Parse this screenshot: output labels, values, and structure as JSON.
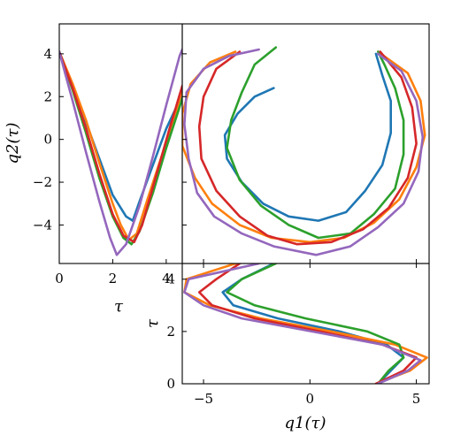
{
  "chart_data": [
    {
      "panel": "left",
      "type": "line",
      "xlabel": "τ",
      "ylabel": "q2(τ)",
      "xlim": [
        0,
        4.6
      ],
      "ylim": [
        -5.8,
        5.4
      ],
      "xticks": [
        "0",
        "2",
        "4"
      ],
      "xtick_values": [
        0,
        2,
        4
      ],
      "yticks": [
        "4",
        "2",
        "0",
        "−2",
        "−4"
      ],
      "ytick_values": [
        4,
        2,
        0,
        -2,
        -4
      ],
      "series": [
        {
          "color": "#1f77b4",
          "points": [
            [
              0,
              4.1
            ],
            [
              0.5,
              2.5
            ],
            [
              1.0,
              0.8
            ],
            [
              1.5,
              -0.9
            ],
            [
              2.0,
              -2.6
            ],
            [
              2.5,
              -3.6
            ],
            [
              2.75,
              -3.8
            ],
            [
              3.0,
              -2.9
            ],
            [
              3.5,
              -1.2
            ],
            [
              4.0,
              0.5
            ],
            [
              4.6,
              2.1
            ]
          ]
        },
        {
          "color": "#ff7f0e",
          "points": [
            [
              0,
              4.1
            ],
            [
              0.5,
              2.6
            ],
            [
              1.0,
              0.9
            ],
            [
              1.5,
              -1.1
            ],
            [
              2.0,
              -3.0
            ],
            [
              2.3,
              -4.0
            ],
            [
              2.6,
              -4.7
            ],
            [
              2.9,
              -4.4
            ],
            [
              3.3,
              -2.8
            ],
            [
              3.8,
              -0.9
            ],
            [
              4.3,
              1.0
            ],
            [
              4.6,
              2.3
            ]
          ]
        },
        {
          "color": "#2ca02c",
          "points": [
            [
              0,
              4.1
            ],
            [
              0.5,
              2.3
            ],
            [
              1.0,
              0.3
            ],
            [
              1.5,
              -1.8
            ],
            [
              2.0,
              -3.6
            ],
            [
              2.4,
              -4.6
            ],
            [
              2.7,
              -4.9
            ],
            [
              3.0,
              -4.3
            ],
            [
              3.5,
              -2.5
            ],
            [
              4.0,
              -0.4
            ],
            [
              4.6,
              1.9
            ]
          ]
        },
        {
          "color": "#d62728",
          "points": [
            [
              0,
              4.1
            ],
            [
              0.5,
              2.4
            ],
            [
              1.0,
              0.5
            ],
            [
              1.5,
              -1.6
            ],
            [
              2.0,
              -3.5
            ],
            [
              2.4,
              -4.5
            ],
            [
              2.8,
              -4.8
            ],
            [
              3.1,
              -4.0
            ],
            [
              3.6,
              -1.8
            ],
            [
              4.1,
              0.4
            ],
            [
              4.6,
              2.5
            ]
          ]
        },
        {
          "color": "#9467bd",
          "points": [
            [
              0,
              4.1
            ],
            [
              0.5,
              1.8
            ],
            [
              1.0,
              -0.6
            ],
            [
              1.5,
              -2.9
            ],
            [
              1.9,
              -4.6
            ],
            [
              2.15,
              -5.4
            ],
            [
              2.5,
              -4.9
            ],
            [
              3.0,
              -3.1
            ],
            [
              3.5,
              -0.8
            ],
            [
              4.0,
              1.6
            ],
            [
              4.5,
              3.9
            ],
            [
              4.6,
              4.2
            ]
          ]
        }
      ]
    },
    {
      "panel": "main",
      "type": "line",
      "xlim": [
        -6,
        5.6
      ],
      "ylim": [
        -5.8,
        5.4
      ],
      "series": [
        {
          "color": "#1f77b4",
          "points": [
            [
              -1.7,
              2.4
            ],
            [
              -2.6,
              2.0
            ],
            [
              -3.4,
              1.2
            ],
            [
              -4.0,
              0.2
            ],
            [
              -3.9,
              -0.9
            ],
            [
              -3.2,
              -2.0
            ],
            [
              -2.2,
              -3.0
            ],
            [
              -1.0,
              -3.6
            ],
            [
              0.4,
              -3.8
            ],
            [
              1.7,
              -3.4
            ],
            [
              2.6,
              -2.4
            ],
            [
              3.4,
              -1.2
            ],
            [
              3.8,
              0.3
            ],
            [
              3.8,
              1.8
            ],
            [
              3.4,
              3.0
            ],
            [
              3.1,
              4.0
            ]
          ]
        },
        {
          "color": "#ff7f0e",
          "points": [
            [
              -3.5,
              4.1
            ],
            [
              -4.7,
              3.6
            ],
            [
              -5.6,
              2.6
            ],
            [
              -6.0,
              1.2
            ],
            [
              -6.0,
              -0.3
            ],
            [
              -5.4,
              -1.8
            ],
            [
              -4.6,
              -3.0
            ],
            [
              -3.3,
              -4.0
            ],
            [
              -1.8,
              -4.6
            ],
            [
              0,
              -4.8
            ],
            [
              1.6,
              -4.6
            ],
            [
              3.0,
              -3.9
            ],
            [
              4.2,
              -2.8
            ],
            [
              5.0,
              -1.3
            ],
            [
              5.4,
              0.2
            ],
            [
              5.2,
              1.8
            ],
            [
              4.6,
              3.1
            ],
            [
              3.2,
              4.1
            ]
          ]
        },
        {
          "color": "#2ca02c",
          "points": [
            [
              -1.6,
              4.3
            ],
            [
              -2.6,
              3.5
            ],
            [
              -3.2,
              2.2
            ],
            [
              -3.7,
              0.9
            ],
            [
              -3.9,
              -0.4
            ],
            [
              -3.3,
              -1.9
            ],
            [
              -2.3,
              -3.1
            ],
            [
              -1.0,
              -4.0
            ],
            [
              0.4,
              -4.6
            ],
            [
              1.9,
              -4.4
            ],
            [
              3.0,
              -3.5
            ],
            [
              4.0,
              -2.3
            ],
            [
              4.4,
              -0.7
            ],
            [
              4.4,
              0.9
            ],
            [
              4.0,
              2.4
            ],
            [
              3.5,
              3.5
            ],
            [
              3.2,
              4.1
            ]
          ]
        },
        {
          "color": "#d62728",
          "points": [
            [
              -3.3,
              4.1
            ],
            [
              -4.4,
              3.3
            ],
            [
              -5.0,
              2.0
            ],
            [
              -5.2,
              0.6
            ],
            [
              -5.1,
              -0.9
            ],
            [
              -4.4,
              -2.4
            ],
            [
              -3.3,
              -3.6
            ],
            [
              -2.0,
              -4.5
            ],
            [
              -0.6,
              -4.9
            ],
            [
              1.0,
              -4.8
            ],
            [
              2.5,
              -4.2
            ],
            [
              3.7,
              -3.2
            ],
            [
              4.6,
              -1.8
            ],
            [
              5.0,
              -0.2
            ],
            [
              4.8,
              1.5
            ],
            [
              4.3,
              2.9
            ],
            [
              3.3,
              4.1
            ]
          ]
        },
        {
          "color": "#9467bd",
          "points": [
            [
              -2.4,
              4.2
            ],
            [
              -3.8,
              3.9
            ],
            [
              -5.0,
              3.3
            ],
            [
              -5.8,
              2.2
            ],
            [
              -5.9,
              0.7
            ],
            [
              -5.7,
              -0.9
            ],
            [
              -5.3,
              -2.5
            ],
            [
              -4.5,
              -3.6
            ],
            [
              -3.2,
              -4.4
            ],
            [
              -1.7,
              -5.0
            ],
            [
              0.3,
              -5.4
            ],
            [
              1.9,
              -5.0
            ],
            [
              3.2,
              -4.1
            ],
            [
              4.4,
              -3.0
            ],
            [
              5.1,
              -1.5
            ],
            [
              5.3,
              0.1
            ],
            [
              5.0,
              1.8
            ],
            [
              4.3,
              3.2
            ],
            [
              3.2,
              4.0
            ]
          ]
        }
      ]
    },
    {
      "panel": "bottom",
      "type": "line",
      "xlabel": "q1(τ)",
      "ylabel": "τ",
      "xlim": [
        -6,
        5.6
      ],
      "ylim": [
        0,
        4.6
      ],
      "xticks": [
        "−5",
        "0",
        "5"
      ],
      "xtick_values": [
        -5,
        0,
        5
      ],
      "yticks": [
        "0",
        "2",
        "4"
      ],
      "ytick_values": [
        0,
        2,
        4
      ],
      "series": [
        {
          "color": "#1f77b4",
          "points": [
            [
              3.2,
              0
            ],
            [
              3.8,
              0.5
            ],
            [
              4.4,
              1.0
            ],
            [
              3.6,
              1.5
            ],
            [
              1.4,
              2.0
            ],
            [
              -1.5,
              2.5
            ],
            [
              -3.6,
              3.0
            ],
            [
              -4.1,
              3.5
            ],
            [
              -3.2,
              4.0
            ],
            [
              -1.7,
              4.6
            ]
          ]
        },
        {
          "color": "#ff7f0e",
          "points": [
            [
              3.1,
              0
            ],
            [
              4.7,
              0.5
            ],
            [
              5.5,
              1.0
            ],
            [
              4.0,
              1.5
            ],
            [
              1.0,
              2.0
            ],
            [
              -2.3,
              2.5
            ],
            [
              -4.7,
              3.0
            ],
            [
              -5.9,
              3.5
            ],
            [
              -5.8,
              4.0
            ],
            [
              -3.5,
              4.6
            ]
          ]
        },
        {
          "color": "#2ca02c",
          "points": [
            [
              3.2,
              0
            ],
            [
              3.7,
              0.5
            ],
            [
              4.4,
              1.0
            ],
            [
              4.2,
              1.5
            ],
            [
              2.7,
              2.0
            ],
            [
              -0.2,
              2.5
            ],
            [
              -2.6,
              3.0
            ],
            [
              -3.9,
              3.5
            ],
            [
              -3.2,
              4.0
            ],
            [
              -1.6,
              4.6
            ]
          ]
        },
        {
          "color": "#d62728",
          "points": [
            [
              3.1,
              0
            ],
            [
              4.4,
              0.5
            ],
            [
              5.0,
              1.0
            ],
            [
              3.4,
              1.5
            ],
            [
              0.5,
              2.0
            ],
            [
              -2.6,
              2.5
            ],
            [
              -4.6,
              3.0
            ],
            [
              -5.2,
              3.5
            ],
            [
              -4.4,
              4.0
            ],
            [
              -3.3,
              4.6
            ]
          ]
        },
        {
          "color": "#9467bd",
          "points": [
            [
              3.2,
              0
            ],
            [
              4.6,
              0.5
            ],
            [
              5.2,
              0.9
            ],
            [
              3.4,
              1.5
            ],
            [
              0.1,
              2.0
            ],
            [
              -3.2,
              2.5
            ],
            [
              -5.0,
              3.0
            ],
            [
              -5.9,
              3.5
            ],
            [
              -5.7,
              4.0
            ],
            [
              -2.4,
              4.6
            ]
          ]
        }
      ]
    }
  ]
}
